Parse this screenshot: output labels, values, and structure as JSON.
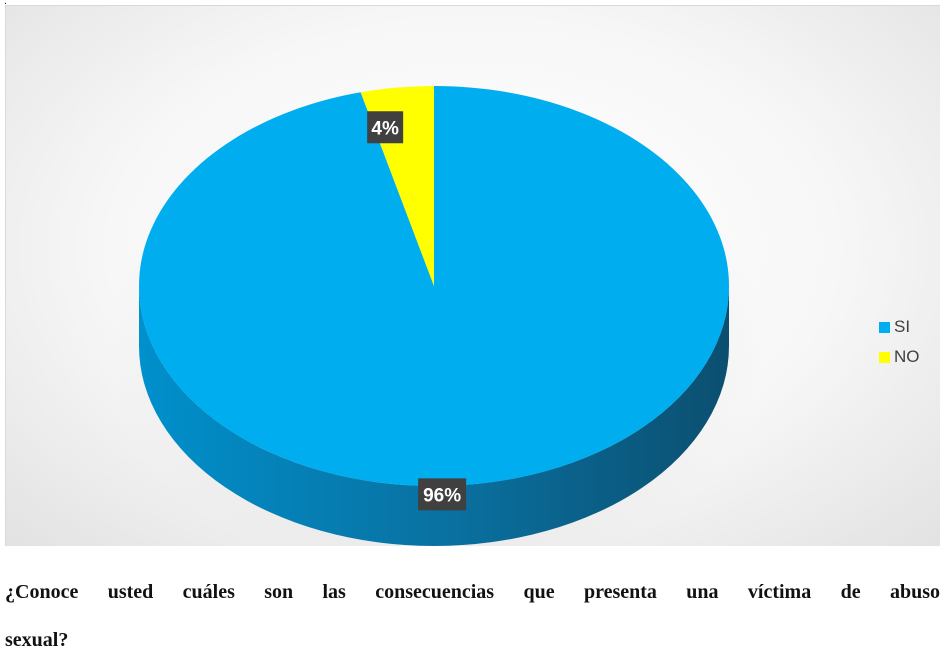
{
  "chart_data": {
    "type": "pie",
    "categories": [
      "SI",
      "NO"
    ],
    "values": [
      96,
      4
    ],
    "data_labels": [
      "96%",
      "4%"
    ],
    "colors": [
      "#00aeef",
      "#ffff00"
    ],
    "legend": [
      "SI",
      "NO"
    ],
    "legend_position": "right",
    "three_d": true
  },
  "caption": {
    "line1": "¿Conoce usted cuáles son las consecuencias que presenta una víctima de abuso",
    "line2": "sexual?"
  },
  "corner_mark": "."
}
